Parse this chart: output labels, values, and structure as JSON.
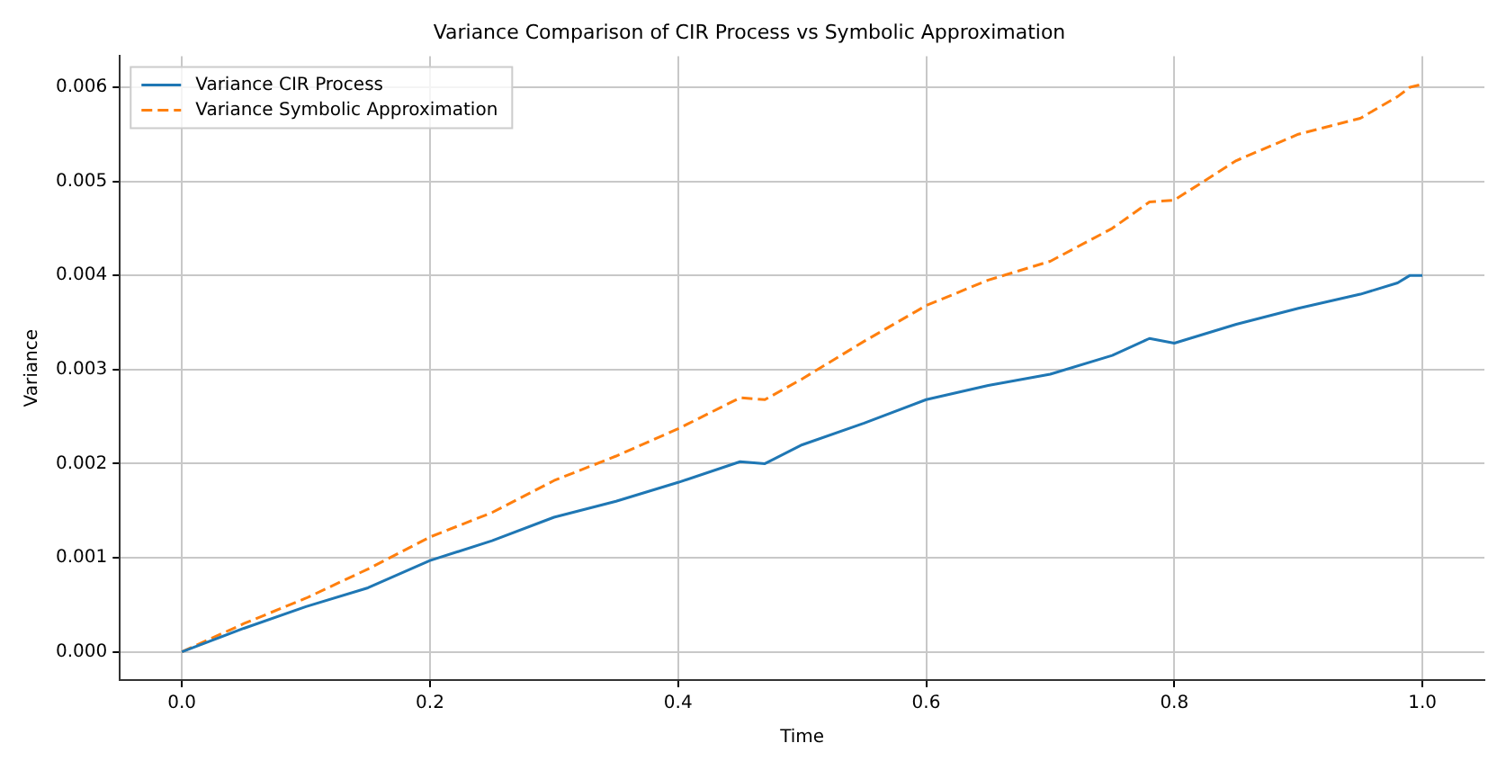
{
  "chart_data": {
    "type": "line",
    "title": "Variance Comparison of CIR Process vs Symbolic Approximation",
    "xlabel": "Time",
    "ylabel": "Variance",
    "x": [
      0,
      0.05,
      0.1,
      0.15,
      0.2,
      0.25,
      0.3,
      0.35,
      0.4,
      0.45,
      0.47,
      0.5,
      0.55,
      0.6,
      0.65,
      0.7,
      0.75,
      0.78,
      0.8,
      0.85,
      0.9,
      0.95,
      0.98,
      0.99,
      1.0
    ],
    "series": [
      {
        "name": "Variance CIR Process",
        "color": "#1f77b4",
        "line_style": "solid",
        "values": [
          0,
          0.00025,
          0.00048,
          0.00068,
          0.00097,
          0.00118,
          0.00143,
          0.0016,
          0.0018,
          0.00202,
          0.002,
          0.0022,
          0.00243,
          0.00268,
          0.00283,
          0.00295,
          0.00315,
          0.00333,
          0.00328,
          0.00348,
          0.00365,
          0.0038,
          0.00392,
          0.004,
          0.004
        ]
      },
      {
        "name": "Variance Symbolic Approximation",
        "color": "#ff7f0e",
        "line_style": "dashed",
        "values": [
          0,
          0.0003,
          0.00057,
          0.00088,
          0.00122,
          0.00148,
          0.00182,
          0.00208,
          0.00237,
          0.0027,
          0.00268,
          0.0029,
          0.0033,
          0.00368,
          0.00395,
          0.00415,
          0.0045,
          0.00478,
          0.0048,
          0.00522,
          0.0055,
          0.00567,
          0.0059,
          0.006,
          0.00603
        ]
      }
    ],
    "xlim": [
      -0.05,
      1.05
    ],
    "xticks": [
      {
        "value": 0,
        "label": "0.0"
      },
      {
        "value": 0.2,
        "label": "0.2"
      },
      {
        "value": 0.4,
        "label": "0.4"
      },
      {
        "value": 0.6,
        "label": "0.6"
      },
      {
        "value": 0.8,
        "label": "0.8"
      },
      {
        "value": 1,
        "label": "1.0"
      }
    ],
    "ylim": [
      -0.0003,
      0.00633
    ],
    "yticks": [
      {
        "value": 0,
        "label": "0.000"
      },
      {
        "value": 0.001,
        "label": "0.001"
      },
      {
        "value": 0.002,
        "label": "0.002"
      },
      {
        "value": 0.003,
        "label": "0.003"
      },
      {
        "value": 0.004,
        "label": "0.004"
      },
      {
        "value": 0.005,
        "label": "0.005"
      },
      {
        "value": 0.006,
        "label": "0.006"
      }
    ],
    "grid": true,
    "legend": "top left",
    "marker": "none"
  }
}
